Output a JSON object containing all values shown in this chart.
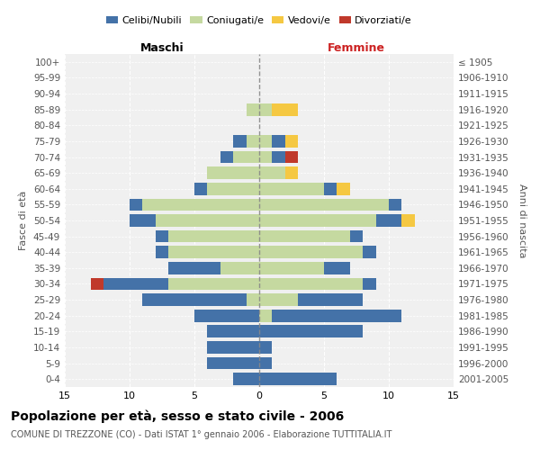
{
  "age_groups": [
    "0-4",
    "5-9",
    "10-14",
    "15-19",
    "20-24",
    "25-29",
    "30-34",
    "35-39",
    "40-44",
    "45-49",
    "50-54",
    "55-59",
    "60-64",
    "65-69",
    "70-74",
    "75-79",
    "80-84",
    "85-89",
    "90-94",
    "95-99",
    "100+"
  ],
  "birth_years": [
    "2001-2005",
    "1996-2000",
    "1991-1995",
    "1986-1990",
    "1981-1985",
    "1976-1980",
    "1971-1975",
    "1966-1970",
    "1961-1965",
    "1956-1960",
    "1951-1955",
    "1946-1950",
    "1941-1945",
    "1936-1940",
    "1931-1935",
    "1926-1930",
    "1921-1925",
    "1916-1920",
    "1911-1915",
    "1906-1910",
    "≤ 1905"
  ],
  "males": {
    "celibi": [
      2,
      4,
      4,
      4,
      5,
      8,
      5,
      4,
      1,
      1,
      2,
      1,
      1,
      0,
      1,
      1,
      0,
      0,
      0,
      0,
      0
    ],
    "coniugati": [
      0,
      0,
      0,
      0,
      0,
      1,
      7,
      3,
      7,
      7,
      8,
      9,
      4,
      4,
      2,
      1,
      0,
      1,
      0,
      0,
      0
    ],
    "vedovi": [
      0,
      0,
      0,
      0,
      0,
      0,
      0,
      0,
      0,
      0,
      0,
      0,
      0,
      0,
      0,
      0,
      0,
      0,
      0,
      0,
      0
    ],
    "divorziati": [
      0,
      0,
      0,
      0,
      0,
      0,
      1,
      0,
      0,
      0,
      0,
      0,
      0,
      0,
      0,
      0,
      0,
      0,
      0,
      0,
      0
    ]
  },
  "females": {
    "nubili": [
      6,
      1,
      1,
      8,
      10,
      5,
      1,
      2,
      1,
      1,
      2,
      1,
      1,
      0,
      1,
      1,
      0,
      0,
      0,
      0,
      0
    ],
    "coniugate": [
      0,
      0,
      0,
      0,
      1,
      3,
      8,
      5,
      8,
      7,
      9,
      10,
      5,
      2,
      1,
      1,
      0,
      1,
      0,
      0,
      0
    ],
    "vedove": [
      0,
      0,
      0,
      0,
      0,
      0,
      0,
      0,
      0,
      0,
      1,
      0,
      1,
      1,
      0,
      1,
      0,
      2,
      0,
      0,
      0
    ],
    "divorziate": [
      0,
      0,
      0,
      0,
      0,
      0,
      0,
      0,
      0,
      0,
      0,
      0,
      0,
      0,
      1,
      0,
      0,
      0,
      0,
      0,
      0
    ]
  },
  "colors": {
    "celibi_nubili": "#4472a8",
    "coniugati": "#c5d9a0",
    "vedovi": "#f5c842",
    "divorziati": "#c0392b"
  },
  "title": "Popolazione per età, sesso e stato civile - 2006",
  "subtitle": "COMUNE DI TREZZONE (CO) - Dati ISTAT 1° gennaio 2006 - Elaborazione TUTTITALIA.IT",
  "xlabel_left": "Maschi",
  "xlabel_right": "Femmine",
  "ylabel_left": "Fasce di età",
  "ylabel_right": "Anni di nascita",
  "xlim": 15,
  "background_color": "#ffffff",
  "grid_color": "#cccccc"
}
